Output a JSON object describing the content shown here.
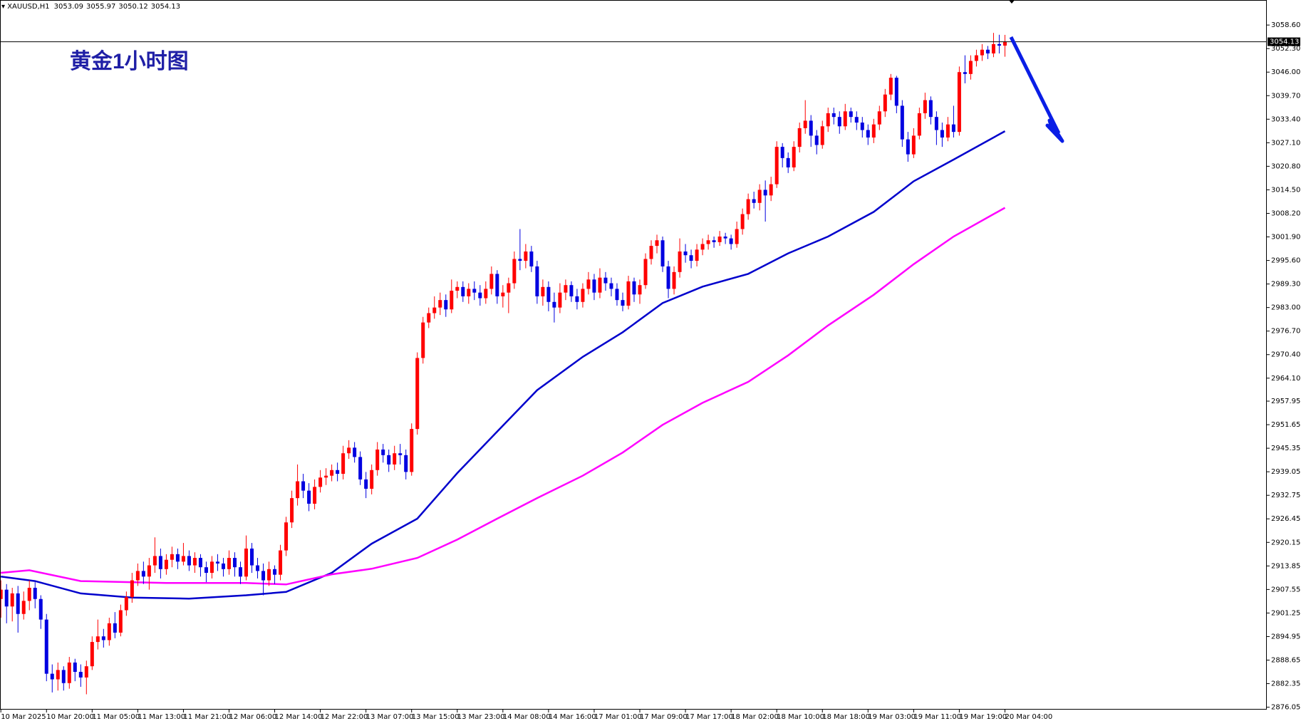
{
  "chart_data": {
    "type": "candlestick",
    "symbol": "XAUUSD,H1",
    "title": "黄金1小时图",
    "up_color": "#ff0000",
    "down_color": "#0000e0",
    "xlim": [
      -0.15,
      221.9
    ],
    "ylim": [
      2875.4,
      3065.3
    ],
    "xticks": [
      {
        "value": 0,
        "label": "10 Mar 2025"
      },
      {
        "value": 8,
        "label": "10 Mar 20:00"
      },
      {
        "value": 16,
        "label": "11 Mar 05:00"
      },
      {
        "value": 24,
        "label": "11 Mar 13:00"
      },
      {
        "value": 32,
        "label": "11 Mar 21:00"
      },
      {
        "value": 40,
        "label": "12 Mar 06:00"
      },
      {
        "value": 48,
        "label": "12 Mar 14:00"
      },
      {
        "value": 56,
        "label": "12 Mar 22:00"
      },
      {
        "value": 64,
        "label": "13 Mar 07:00"
      },
      {
        "value": 72,
        "label": "13 Mar 15:00"
      },
      {
        "value": 80,
        "label": "13 Mar 23:00"
      },
      {
        "value": 88,
        "label": "14 Mar 08:00"
      },
      {
        "value": 96,
        "label": "14 Mar 16:00"
      },
      {
        "value": 104,
        "label": "17 Mar 01:00"
      },
      {
        "value": 112,
        "label": "17 Mar 09:00"
      },
      {
        "value": 120,
        "label": "17 Mar 17:00"
      },
      {
        "value": 128,
        "label": "18 Mar 02:00"
      },
      {
        "value": 136,
        "label": "18 Mar 10:00"
      },
      {
        "value": 144,
        "label": "18 Mar 18:00"
      },
      {
        "value": 152,
        "label": "19 Mar 03:00"
      },
      {
        "value": 160,
        "label": "19 Mar 11:00"
      },
      {
        "value": 168,
        "label": "19 Mar 19:00"
      },
      {
        "value": 176,
        "label": "20 Mar 04:00"
      }
    ],
    "yticks": [
      {
        "value": 3058.6,
        "label": "3058.60"
      },
      {
        "value": 3052.3,
        "label": "3052.30"
      },
      {
        "value": 3046,
        "label": "3046.00"
      },
      {
        "value": 3039.7,
        "label": "3039.70"
      },
      {
        "value": 3033.4,
        "label": "3033.40"
      },
      {
        "value": 3027.1,
        "label": "3027.10"
      },
      {
        "value": 3020.8,
        "label": "3020.80"
      },
      {
        "value": 3014.5,
        "label": "3014.50"
      },
      {
        "value": 3008.2,
        "label": "3008.20"
      },
      {
        "value": 3001.9,
        "label": "3001.90"
      },
      {
        "value": 2995.6,
        "label": "2995.60"
      },
      {
        "value": 2989.3,
        "label": "2989.30"
      },
      {
        "value": 2983,
        "label": "2983.00"
      },
      {
        "value": 2976.7,
        "label": "2976.70"
      },
      {
        "value": 2970.4,
        "label": "2970.40"
      },
      {
        "value": 2964.1,
        "label": "2964.10"
      },
      {
        "value": 2957.95,
        "label": "2957.95"
      },
      {
        "value": 2951.65,
        "label": "2951.65"
      },
      {
        "value": 2945.35,
        "label": "2945.35"
      },
      {
        "value": 2939.05,
        "label": "2939.05"
      },
      {
        "value": 2932.75,
        "label": "2932.75"
      },
      {
        "value": 2926.45,
        "label": "2926.45"
      },
      {
        "value": 2920.15,
        "label": "2920.15"
      },
      {
        "value": 2913.85,
        "label": "2913.85"
      },
      {
        "value": 2907.55,
        "label": "2907.55"
      },
      {
        "value": 2901.25,
        "label": "2901.25"
      },
      {
        "value": 2894.95,
        "label": "2894.95"
      },
      {
        "value": 2888.65,
        "label": "2888.65"
      },
      {
        "value": 2882.35,
        "label": "2882.35"
      },
      {
        "value": 2876.05,
        "label": "2876.05"
      }
    ],
    "open": [
      2905,
      2907.5,
      2903,
      2906.5,
      2901,
      2904.5,
      2908,
      2905,
      2899.5,
      2885,
      2883.5,
      2886,
      2882.5,
      2888,
      2885.5,
      2884,
      2887,
      2893.5,
      2895,
      2894,
      2898.5,
      2896,
      2902,
      2905.5,
      2910,
      2912.5,
      2911,
      2914,
      2916.5,
      2913,
      2915.5,
      2917,
      2915,
      2916.5,
      2914,
      2916,
      2913.5,
      2912,
      2915,
      2914.5,
      2913,
      2916,
      2913.5,
      2911,
      2918.5,
      2914,
      2912.5,
      2910,
      2913,
      2911.5,
      2918,
      2925.5,
      2932,
      2936.5,
      2934,
      2930.5,
      2935,
      2937.5,
      2938,
      2939.5,
      2938.5,
      2944,
      2945.5,
      2943,
      2937,
      2934.5,
      2939.5,
      2945,
      2943.5,
      2941,
      2944,
      2943.5,
      2939,
      2950.5,
      2969.5,
      2979,
      2981.5,
      2983,
      2985,
      2982.5,
      2987.5,
      2988.5,
      2986,
      2988,
      2987,
      2985.5,
      2988,
      2992,
      2986,
      2987,
      2989.5,
      2996,
      2995.5,
      2998,
      2994,
      2986,
      2988.5,
      2984.5,
      2983,
      2987,
      2989,
      2986,
      2984.5,
      2988,
      2990.5,
      2987,
      2991,
      2989.5,
      2988,
      2985,
      2983.5,
      2990,
      2986.5,
      2989,
      2996,
      2999.5,
      3001,
      2994,
      2988,
      2992.5,
      2998,
      2997,
      2995.5,
      2998.5,
      3000,
      3001,
      3000.5,
      3002,
      3001.5,
      3000,
      3004,
      3008,
      3012,
      3011,
      3014.5,
      3013,
      3016,
      3026,
      3023,
      3020.5,
      3026,
      3031,
      3033,
      3029,
      3026.5,
      3031.5,
      3035,
      3034,
      3031.5,
      3035.5,
      3034,
      3032.5,
      3030.5,
      3028.5,
      3032,
      3035.5,
      3040,
      3044.5,
      3037,
      3028,
      3024,
      3029,
      3035,
      3038.5,
      3034,
      3030.5,
      3028.5,
      3032,
      3030,
      3046,
      3045.5,
      3049,
      3050.5,
      3052,
      3051,
      3053.5,
      3053.09
    ],
    "high": [
      2910,
      2909,
      2908,
      2908.5,
      2907,
      2910,
      2909.5,
      2906,
      2901,
      2887.5,
      2888,
      2887,
      2889.5,
      2889,
      2887.5,
      2888.5,
      2895,
      2899.5,
      2897,
      2900,
      2901.5,
      2903.5,
      2907,
      2912,
      2914.5,
      2915,
      2916,
      2921.5,
      2918.5,
      2917,
      2919,
      2918.5,
      2920,
      2918,
      2917.5,
      2917,
      2915,
      2916.5,
      2917,
      2916,
      2918,
      2917.5,
      2915,
      2922,
      2920,
      2916,
      2914.5,
      2915,
      2914,
      2919.5,
      2927,
      2934,
      2941,
      2938.5,
      2936,
      2937,
      2939.5,
      2940,
      2941,
      2941.5,
      2946,
      2947.5,
      2947,
      2944.5,
      2939,
      2941,
      2947,
      2946.5,
      2945,
      2946,
      2946.5,
      2945,
      2952,
      2971,
      2980.5,
      2983,
      2986,
      2987,
      2986.5,
      2990.5,
      2990,
      2990,
      2989.5,
      2990,
      2989,
      2990,
      2994,
      2993,
      2989,
      2991,
      2998,
      3004,
      3000,
      2999.5,
      2995.5,
      2990.5,
      2990,
      2987,
      2989.5,
      2990.5,
      2990,
      2988,
      2989.5,
      2992.5,
      2992,
      2993.5,
      2992.5,
      2991,
      2989.5,
      2987,
      2991.5,
      2991,
      2990.5,
      2997.5,
      3001,
      3002.5,
      3002,
      2995.5,
      2994,
      3001.5,
      3000,
      2998.5,
      3000,
      3001.5,
      3002.5,
      3002,
      3003.5,
      3003,
      3002.5,
      3006,
      3009.5,
      3013.5,
      3014,
      3016,
      3017,
      3018,
      3027.5,
      3027,
      3024.5,
      3027.5,
      3032.5,
      3038.5,
      3034.5,
      3030.5,
      3033,
      3036.5,
      3036.5,
      3035.5,
      3037.5,
      3036.5,
      3035.5,
      3034,
      3032,
      3033.5,
      3037,
      3041.5,
      3045.5,
      3045,
      3038.5,
      3030,
      3031,
      3036.5,
      3040.5,
      3039.5,
      3035.5,
      3032.5,
      3034,
      3037,
      3047.5,
      3050.5,
      3050.5,
      3052,
      3053.5,
      3053,
      3056.5,
      3056,
      3055.97
    ],
    "low": [
      2900,
      2898.5,
      2899,
      2896,
      2899.5,
      2902,
      2902.5,
      2897,
      2883,
      2880,
      2880.5,
      2880.5,
      2881,
      2883,
      2881.5,
      2879.5,
      2886,
      2891.5,
      2892,
      2892.5,
      2894.5,
      2895,
      2900.5,
      2904,
      2908.5,
      2909,
      2907.5,
      2912,
      2910.5,
      2911.5,
      2913.5,
      2913,
      2914,
      2912.5,
      2912,
      2911,
      2909.5,
      2910.5,
      2912.5,
      2911,
      2911.5,
      2911,
      2909,
      2910,
      2912,
      2910.5,
      2906,
      2908.5,
      2909,
      2910,
      2916.5,
      2924,
      2930,
      2932,
      2928.5,
      2929,
      2933.5,
      2935.5,
      2936.5,
      2936.5,
      2937,
      2942.5,
      2941.5,
      2935.5,
      2932,
      2933,
      2938,
      2941.5,
      2939,
      2939.5,
      2941,
      2937,
      2938,
      2949,
      2968,
      2977.5,
      2980,
      2981,
      2980.5,
      2981.5,
      2985.5,
      2984.5,
      2984,
      2985,
      2983.5,
      2984,
      2986.5,
      2984,
      2983,
      2981.5,
      2988,
      2993,
      2993.5,
      2992.5,
      2984,
      2983.5,
      2982,
      2979,
      2981.5,
      2985,
      2984.5,
      2982.5,
      2983,
      2986.5,
      2985,
      2985.5,
      2987.5,
      2986,
      2983.5,
      2982,
      2982.5,
      2984.5,
      2984,
      2988,
      2994.5,
      2997.5,
      2992.5,
      2985.5,
      2986.5,
      2991,
      2995,
      2993.5,
      2994,
      2997,
      2998.5,
      2999,
      2999.5,
      3000,
      2998.5,
      2999,
      3002.5,
      3006.5,
      3009.5,
      3009,
      3006,
      3011.5,
      3015,
      3020.5,
      3019,
      3019.5,
      3024.5,
      3029.5,
      3026,
      3024,
      3025.5,
      3030,
      3032,
      3029.5,
      3030.5,
      3032.5,
      3030.5,
      3028.5,
      3026.5,
      3027,
      3030.5,
      3034,
      3038.5,
      3035,
      3026,
      3022,
      3023,
      3028,
      3033.5,
      3032,
      3026.5,
      3026,
      3027.5,
      3028.5,
      3029,
      3043,
      3044,
      3047.5,
      3049,
      3049.5,
      3050,
      3051,
      3050.12
    ],
    "close": [
      2907.5,
      2903,
      2906.5,
      2901,
      2904.5,
      2908,
      2905,
      2899.5,
      2885,
      2883.5,
      2886,
      2882.5,
      2888,
      2885.5,
      2884,
      2887,
      2893.5,
      2895,
      2894,
      2898.5,
      2896,
      2902,
      2905.5,
      2910,
      2912.5,
      2911,
      2914,
      2916.5,
      2913,
      2915.5,
      2917,
      2915,
      2916.5,
      2914,
      2916,
      2913.5,
      2912,
      2915,
      2914.5,
      2913,
      2916,
      2913.5,
      2911,
      2918.5,
      2914,
      2912.5,
      2910,
      2913,
      2911.5,
      2918,
      2925.5,
      2932,
      2936.5,
      2934,
      2930.5,
      2935,
      2937.5,
      2938,
      2939.5,
      2938.5,
      2944,
      2945.5,
      2943,
      2937,
      2934.5,
      2939.5,
      2945,
      2943.5,
      2941,
      2944,
      2943.5,
      2939,
      2950.5,
      2969.5,
      2979,
      2981.5,
      2983,
      2985,
      2982.5,
      2987.5,
      2988.5,
      2986,
      2988,
      2987,
      2985.5,
      2988,
      2992,
      2986,
      2987,
      2989.5,
      2996,
      2995.5,
      2998,
      2994,
      2986,
      2988.5,
      2984.5,
      2983,
      2987,
      2989,
      2986,
      2984.5,
      2988,
      2990.5,
      2987,
      2991,
      2989.5,
      2988,
      2985,
      2983.5,
      2990,
      2986.5,
      2989,
      2996,
      2999.5,
      3001,
      2994,
      2988,
      2992.5,
      2998,
      2997,
      2995.5,
      2998.5,
      3000,
      3001,
      3000.5,
      3002,
      3001.5,
      3000,
      3004,
      3008,
      3012,
      3011,
      3014.5,
      3013,
      3016,
      3026,
      3023,
      3020.5,
      3026,
      3031,
      3033,
      3029,
      3026.5,
      3031.5,
      3035,
      3034,
      3031.5,
      3035.5,
      3034,
      3032.5,
      3030.5,
      3028.5,
      3032,
      3035.5,
      3040,
      3044.5,
      3037,
      3028,
      3024,
      3029,
      3035,
      3038.5,
      3034,
      3030.5,
      3028.5,
      3032,
      3030,
      3046,
      3045.5,
      3049,
      3050.5,
      3052,
      3051,
      3053.5,
      3053.09,
      3054.13
    ],
    "lines": [
      {
        "color": "#0000cc",
        "x": [
          0,
          6,
          14,
          23,
          33,
          43,
          50,
          58,
          65,
          73,
          80,
          87,
          94,
          102,
          109,
          116,
          123,
          131,
          138,
          145,
          153,
          160,
          167,
          176
        ],
        "values": [
          2911,
          2909.8,
          2906.5,
          2905.4,
          2905.1,
          2906,
          2906.9,
          2912,
          2919.8,
          2926.5,
          2938.7,
          2949.8,
          2960.9,
          2969.8,
          2976.4,
          2984.2,
          2988.6,
          2992,
          2997.5,
          3002,
          3008.6,
          3016.8,
          3022.6,
          3030.2
        ]
      },
      {
        "color": "#ff00ff",
        "x": [
          0,
          5,
          14,
          29,
          43,
          50,
          58,
          65,
          73,
          80,
          87,
          94,
          102,
          109,
          116,
          123,
          131,
          138,
          145,
          153,
          160,
          167,
          176
        ],
        "values": [
          2912,
          2912.7,
          2909.8,
          2909.3,
          2909.3,
          2908.9,
          2911.6,
          2913.1,
          2916,
          2920.9,
          2926.5,
          2932,
          2938,
          2944.2,
          2951.6,
          2957.5,
          2963.1,
          2970.2,
          2978.2,
          2986.4,
          2994.6,
          3002,
          3009.7
        ]
      }
    ]
  }
}
